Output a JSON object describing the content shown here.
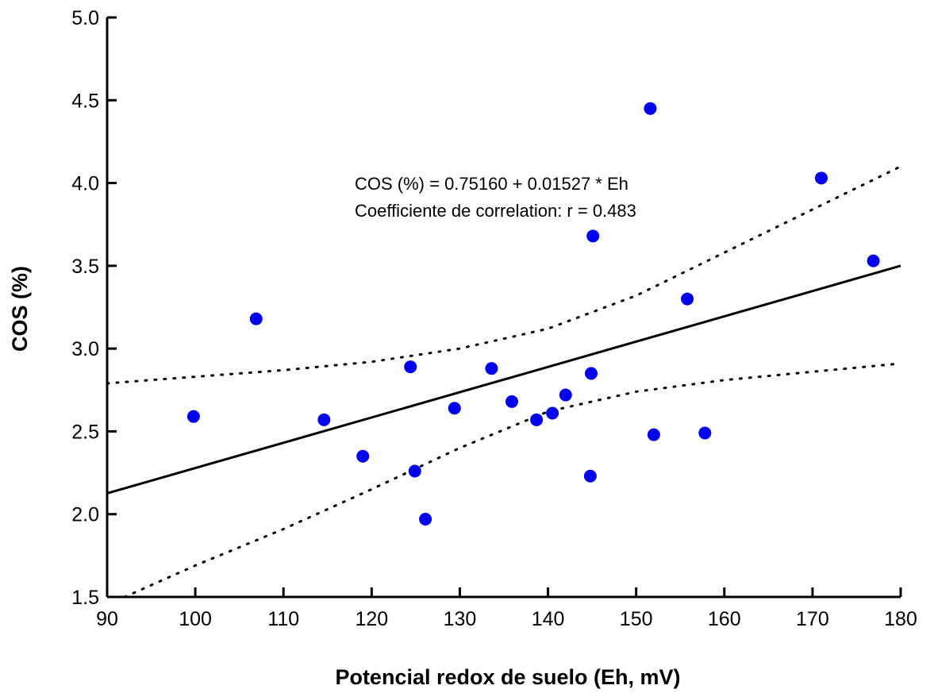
{
  "chart_data": {
    "type": "scatter",
    "title": "",
    "xlabel": "Potencial redox de suelo (Eh, mV)",
    "ylabel": "COS (%)",
    "xlim": [
      90,
      180
    ],
    "ylim": [
      1.5,
      5.0
    ],
    "xticks": [
      90,
      100,
      110,
      120,
      130,
      140,
      150,
      160,
      170,
      180
    ],
    "yticks": [
      1.5,
      2.0,
      2.5,
      3.0,
      3.5,
      4.0,
      4.5,
      5.0
    ],
    "ytick_labels": [
      "1.5",
      "2.0",
      "2.5",
      "3.0",
      "3.5",
      "4.0",
      "4.5",
      "5.0"
    ],
    "grid": false,
    "point_color": "#0000ee",
    "points": [
      {
        "x": 99.8,
        "y": 2.59
      },
      {
        "x": 106.9,
        "y": 3.18
      },
      {
        "x": 114.6,
        "y": 2.57
      },
      {
        "x": 119.0,
        "y": 2.35
      },
      {
        "x": 124.4,
        "y": 2.89
      },
      {
        "x": 124.9,
        "y": 2.26
      },
      {
        "x": 126.1,
        "y": 1.97
      },
      {
        "x": 129.4,
        "y": 2.64
      },
      {
        "x": 133.6,
        "y": 2.88
      },
      {
        "x": 135.9,
        "y": 2.68
      },
      {
        "x": 138.7,
        "y": 2.57
      },
      {
        "x": 140.5,
        "y": 2.61
      },
      {
        "x": 142.0,
        "y": 2.72
      },
      {
        "x": 144.8,
        "y": 2.23
      },
      {
        "x": 144.9,
        "y": 2.85
      },
      {
        "x": 145.1,
        "y": 3.68
      },
      {
        "x": 151.6,
        "y": 4.45
      },
      {
        "x": 152.0,
        "y": 2.48
      },
      {
        "x": 155.8,
        "y": 3.3
      },
      {
        "x": 157.8,
        "y": 2.49
      },
      {
        "x": 171.0,
        "y": 4.03
      },
      {
        "x": 176.9,
        "y": 3.53
      }
    ],
    "regression": {
      "intercept": 0.7516,
      "slope": 0.01527
    },
    "confidence_upper": [
      [
        90,
        2.79
      ],
      [
        100,
        2.83
      ],
      [
        110,
        2.87
      ],
      [
        120,
        2.92
      ],
      [
        130,
        3.0
      ],
      [
        140,
        3.12
      ],
      [
        150,
        3.32
      ],
      [
        160,
        3.58
      ],
      [
        170,
        3.84
      ],
      [
        180,
        4.1
      ]
    ],
    "confidence_lower": [
      [
        92,
        1.5
      ],
      [
        100,
        1.69
      ],
      [
        110,
        1.91
      ],
      [
        120,
        2.15
      ],
      [
        130,
        2.4
      ],
      [
        140,
        2.62
      ],
      [
        150,
        2.74
      ],
      [
        160,
        2.81
      ],
      [
        170,
        2.86
      ],
      [
        180,
        2.91
      ]
    ],
    "annotations": [
      "COS (%) = 0.75160 + 0.01527 * Eh",
      "Coefficiente de correlation: r = 0.483"
    ]
  }
}
